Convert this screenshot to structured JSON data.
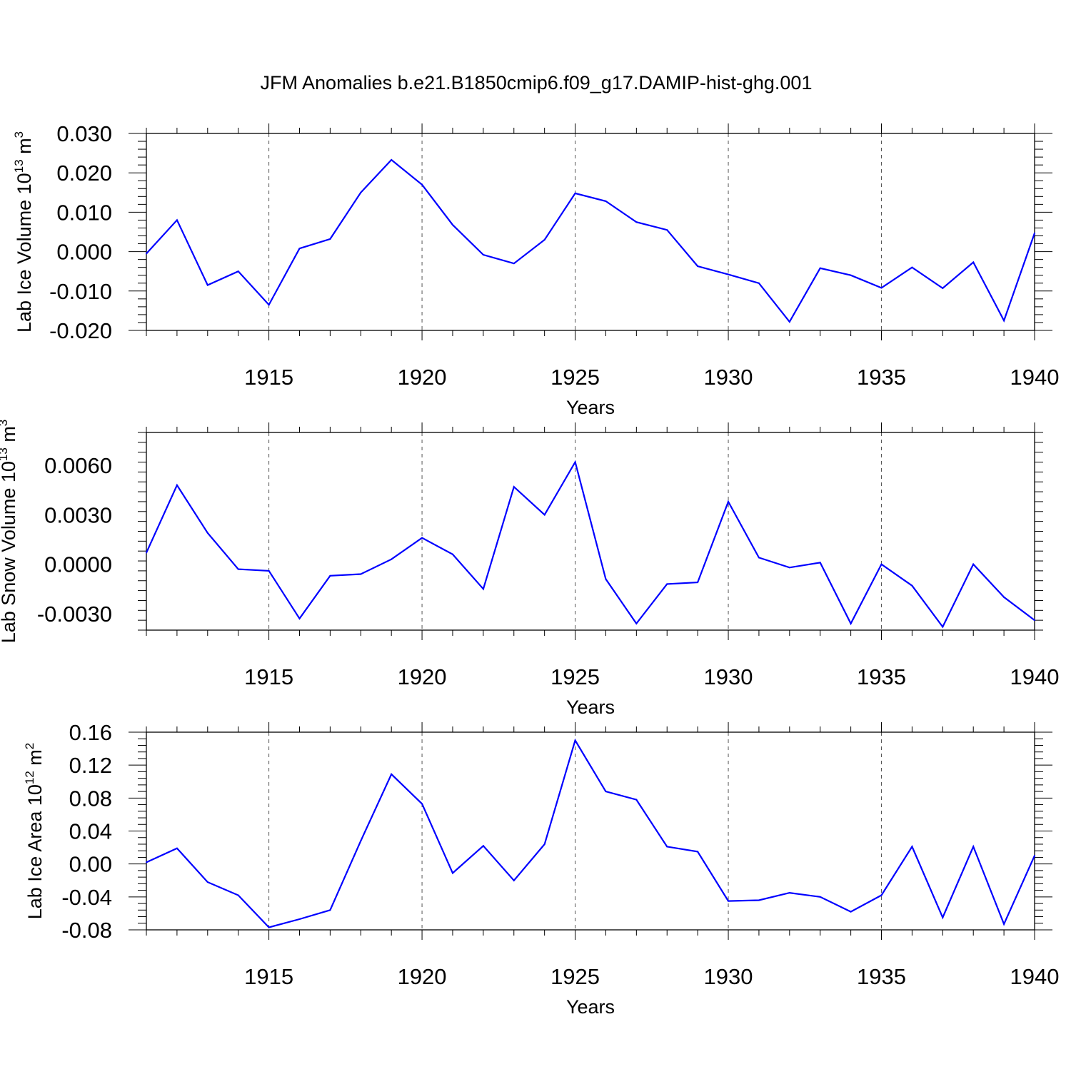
{
  "title": "JFM Anomalies b.e21.B1850cmip6.f09_g17.DAMIP-hist-ghg.001",
  "line_color": "#0000ff",
  "chart_data": [
    {
      "type": "line",
      "ylabel": "Lab Ice Volume 10",
      "ylabel_sup_exp": "13",
      "ylabel_unit": " m",
      "ylabel_sup_unit": "3",
      "xlabel": "Years",
      "xlim": [
        1911,
        1940
      ],
      "ylim": [
        -0.02,
        0.03
      ],
      "yticks": [
        -0.02,
        -0.01,
        0.0,
        0.01,
        0.02,
        0.03
      ],
      "ytick_labels": [
        "-0.020",
        "-0.010",
        "0.000",
        "0.010",
        "0.020",
        "0.030"
      ],
      "xticks": [
        1915,
        1920,
        1925,
        1930,
        1935,
        1940
      ],
      "xtick_labels": [
        "1915",
        "1920",
        "1925",
        "1930",
        "1935",
        "1940"
      ],
      "x": [
        1911,
        1912,
        1913,
        1914,
        1915,
        1916,
        1917,
        1918,
        1919,
        1920,
        1921,
        1922,
        1923,
        1924,
        1925,
        1926,
        1927,
        1928,
        1929,
        1930,
        1931,
        1932,
        1933,
        1934,
        1935,
        1936,
        1937,
        1938,
        1939,
        1940
      ],
      "values": [
        -0.0005,
        0.008,
        -0.0085,
        -0.005,
        -0.0135,
        0.0008,
        0.0032,
        0.015,
        0.0233,
        0.017,
        0.0068,
        -0.0008,
        -0.003,
        0.003,
        0.0148,
        0.0128,
        0.0075,
        0.0055,
        -0.0037,
        -0.0058,
        -0.008,
        -0.0178,
        -0.0042,
        -0.006,
        -0.0092,
        -0.004,
        -0.0093,
        -0.0027,
        -0.0175,
        0.0047
      ]
    },
    {
      "type": "line",
      "ylabel": "Lab Snow Volume 10",
      "ylabel_sup_exp": "13",
      "ylabel_unit": " m",
      "ylabel_sup_unit": "3",
      "xlabel": "Years",
      "xlim": [
        1911,
        1940
      ],
      "ylim": [
        -0.004,
        0.008
      ],
      "yticks": [
        -0.003,
        0.0,
        0.003,
        0.006
      ],
      "ytick_labels": [
        "-0.0030",
        "0.0000",
        "0.0030",
        "0.0060"
      ],
      "xticks": [
        1915,
        1920,
        1925,
        1930,
        1935,
        1940
      ],
      "xtick_labels": [
        "1915",
        "1920",
        "1925",
        "1930",
        "1935",
        "1940"
      ],
      "x": [
        1911,
        1912,
        1913,
        1914,
        1915,
        1916,
        1917,
        1918,
        1919,
        1920,
        1921,
        1922,
        1923,
        1924,
        1925,
        1926,
        1927,
        1928,
        1929,
        1930,
        1931,
        1932,
        1933,
        1934,
        1935,
        1936,
        1937,
        1938,
        1939,
        1940
      ],
      "values": [
        0.0007,
        0.0048,
        0.0019,
        -0.0003,
        -0.0004,
        -0.0033,
        -0.0007,
        -0.0006,
        0.0003,
        0.0016,
        0.0006,
        -0.0015,
        0.0047,
        0.003,
        0.0062,
        -0.0009,
        -0.0036,
        -0.0012,
        -0.0011,
        0.0038,
        0.0004,
        -0.0002,
        0.0001,
        -0.0036,
        0.0,
        -0.0013,
        -0.0038,
        0.0,
        -0.002,
        -0.0034
      ]
    },
    {
      "type": "line",
      "ylabel": "Lab Ice Area 10",
      "ylabel_sup_exp": "12",
      "ylabel_unit": " m",
      "ylabel_sup_unit": "2",
      "xlabel": "Years",
      "xlim": [
        1911,
        1940
      ],
      "ylim": [
        -0.08,
        0.16
      ],
      "yticks": [
        -0.08,
        -0.04,
        0.0,
        0.04,
        0.08,
        0.12,
        0.16
      ],
      "ytick_labels": [
        "-0.08",
        "-0.04",
        "0.00",
        "0.04",
        "0.08",
        "0.12",
        "0.16"
      ],
      "xticks": [
        1915,
        1920,
        1925,
        1930,
        1935,
        1940
      ],
      "xtick_labels": [
        "1915",
        "1920",
        "1925",
        "1930",
        "1935",
        "1940"
      ],
      "x": [
        1911,
        1912,
        1913,
        1914,
        1915,
        1916,
        1917,
        1918,
        1919,
        1920,
        1921,
        1922,
        1923,
        1924,
        1925,
        1926,
        1927,
        1928,
        1929,
        1930,
        1931,
        1932,
        1933,
        1934,
        1935,
        1936,
        1937,
        1938,
        1939,
        1940
      ],
      "values": [
        0.002,
        0.019,
        -0.022,
        -0.038,
        -0.077,
        -0.067,
        -0.056,
        0.028,
        0.109,
        0.073,
        -0.011,
        0.022,
        -0.02,
        0.024,
        0.15,
        0.088,
        0.078,
        0.021,
        0.015,
        -0.045,
        -0.044,
        -0.035,
        -0.04,
        -0.058,
        -0.038,
        0.021,
        -0.065,
        0.021,
        -0.073,
        0.01
      ]
    }
  ]
}
